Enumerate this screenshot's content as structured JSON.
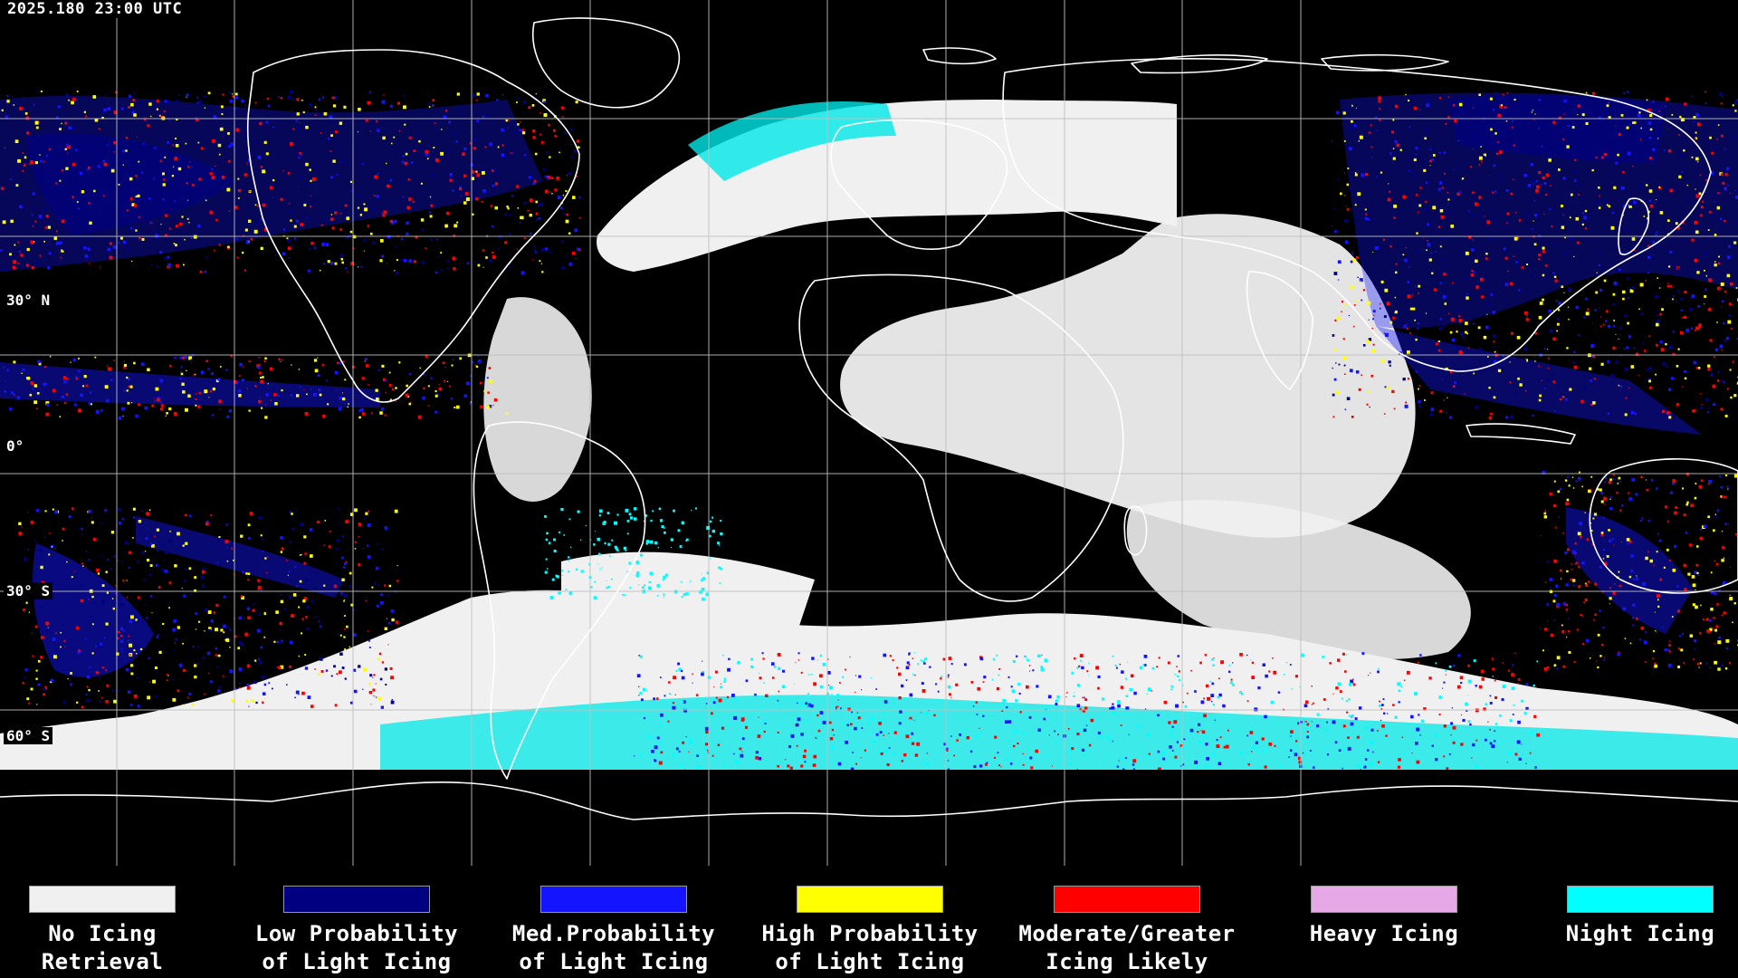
{
  "timestamp": "2025.180 23:00 UTC",
  "lat_labels": [
    "30° N",
    "0°",
    "30° S",
    "60° S"
  ],
  "colors": {
    "background": "#000000",
    "coastline": "#ffffff",
    "grid": "#bfbfbf",
    "no_icing": "#f0f0f0",
    "low_prob": "#000080",
    "med_prob": "#1414ff",
    "high_prob": "#ffff00",
    "moderate": "#ff0000",
    "heavy": "#e6a8e6",
    "night": "#00ffff"
  },
  "legend": [
    {
      "line1": "No Icing",
      "line2": "Retrieval",
      "color": "#f0f0f0"
    },
    {
      "line1": "Low Probability",
      "line2": "of Light Icing",
      "color": "#000080"
    },
    {
      "line1": "Med.Probability",
      "line2": "of Light Icing",
      "color": "#1414ff"
    },
    {
      "line1": "High Probability",
      "line2": "of Light Icing",
      "color": "#ffff00"
    },
    {
      "line1": "Moderate/Greater",
      "line2": "Icing Likely",
      "color": "#ff0000"
    },
    {
      "line1": "Heavy Icing",
      "line2": "",
      "color": "#e6a8e6"
    },
    {
      "line1": "Night Icing",
      "line2": "",
      "color": "#00ffff"
    }
  ]
}
